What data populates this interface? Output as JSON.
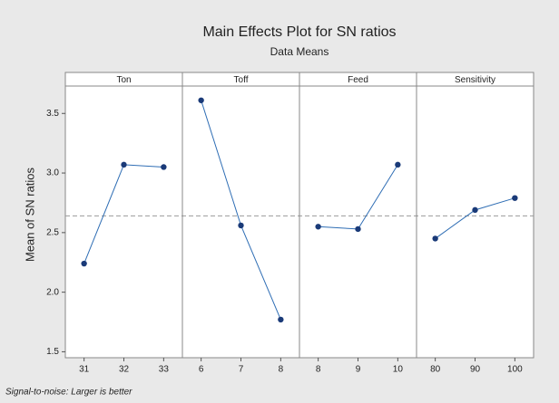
{
  "chart_data": {
    "type": "line",
    "title": "Main Effects Plot for SN ratios",
    "subtitle": "Data Means",
    "y_label": "Mean of SN ratios",
    "footnote": "Signal-to-noise: Larger is better",
    "ylim": [
      1.45,
      3.73
    ],
    "yticks": [
      1.5,
      {
        "value": 2,
        "label": "2.0"
      },
      2.5,
      {
        "value": 3,
        "label": "3.0"
      },
      3.5
    ],
    "reference_line": 2.64,
    "color": "#2e6db4",
    "marker_color": "#1a3a78",
    "panels": [
      {
        "name": "Ton",
        "categories": [
          "31",
          "32",
          "33"
        ],
        "values": [
          2.24,
          3.07,
          3.05
        ]
      },
      {
        "name": "Toff",
        "categories": [
          "6",
          "7",
          "8"
        ],
        "values": [
          3.61,
          2.56,
          1.77
        ]
      },
      {
        "name": "Feed",
        "categories": [
          "8",
          "9",
          "10"
        ],
        "values": [
          2.55,
          2.53,
          3.07
        ]
      },
      {
        "name": "Sensitivity",
        "categories": [
          "80",
          "90",
          "100"
        ],
        "values": [
          2.45,
          2.69,
          2.79
        ]
      }
    ]
  }
}
